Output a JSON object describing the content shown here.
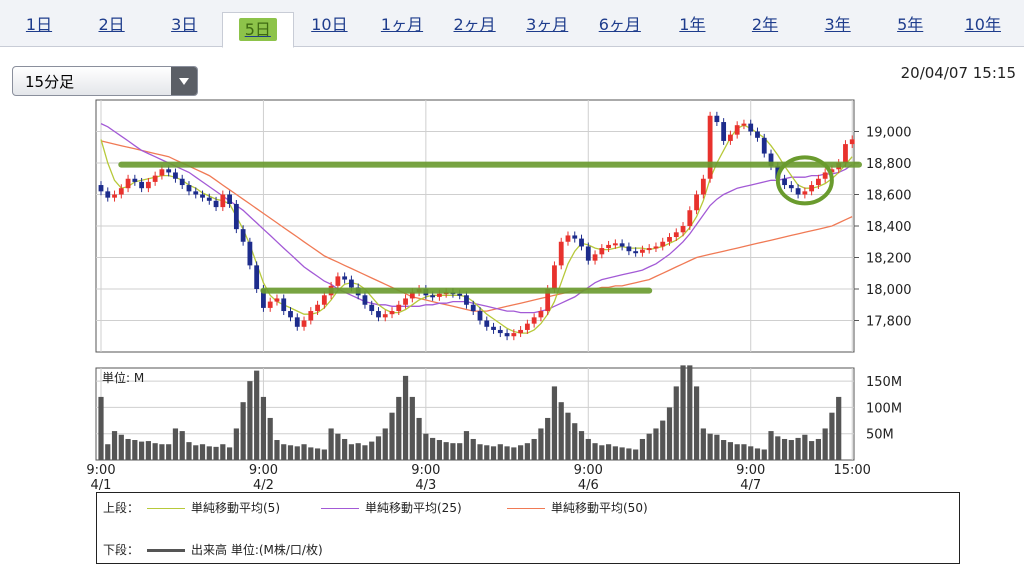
{
  "tabs": [
    {
      "label": "1日",
      "active": false
    },
    {
      "label": "2日",
      "active": false
    },
    {
      "label": "3日",
      "active": false
    },
    {
      "label": "5日",
      "active": true
    },
    {
      "label": "10日",
      "active": false
    },
    {
      "label": "1ヶ月",
      "active": false
    },
    {
      "label": "2ヶ月",
      "active": false
    },
    {
      "label": "3ヶ月",
      "active": false
    },
    {
      "label": "6ヶ月",
      "active": false
    },
    {
      "label": "1年",
      "active": false
    },
    {
      "label": "2年",
      "active": false
    },
    {
      "label": "3年",
      "active": false
    },
    {
      "label": "5年",
      "active": false
    },
    {
      "label": "10年",
      "active": false
    }
  ],
  "interval_select": {
    "value": "15分足"
  },
  "timestamp": "20/04/07 15:15",
  "legend": {
    "upper_label": "上段：",
    "lower_label": "下段：",
    "sma5": "単純移動平均(5)",
    "sma25": "単純移動平均(25)",
    "sma50": "単純移動平均(50)",
    "volume": "出来高 単位:(M株/口/枚)"
  },
  "colors": {
    "up": "#e8322d",
    "down": "#1d2c8c",
    "sma5": "#b7c93a",
    "sma25": "#a35ad6",
    "sma50": "#f07a55",
    "annotation": "#6a9b2e",
    "volume": "#555555"
  },
  "chart_data": [
    {
      "type": "candlestick",
      "ylim": [
        17600,
        19200
      ],
      "y_ticks": [
        "19,000",
        "18,800",
        "18,600",
        "18,400",
        "18,200",
        "18,000",
        "17,800"
      ],
      "x_ticks": [
        {
          "time": "9:00",
          "date": "4/1"
        },
        {
          "time": "9:00",
          "date": "4/2"
        },
        {
          "time": "9:00",
          "date": "4/3"
        },
        {
          "time": "9:00",
          "date": "4/6"
        },
        {
          "time": "9:00",
          "date": "4/7"
        },
        {
          "time": "15:00",
          "date": ""
        }
      ],
      "close": [
        18620,
        18580,
        18600,
        18640,
        18700,
        18680,
        18640,
        18680,
        18720,
        18760,
        18740,
        18700,
        18660,
        18620,
        18600,
        18580,
        18560,
        18520,
        18600,
        18540,
        18380,
        18300,
        18150,
        18000,
        17880,
        17920,
        17940,
        17860,
        17820,
        17760,
        17800,
        17860,
        17900,
        17960,
        18020,
        18080,
        18060,
        18010,
        17960,
        17900,
        17860,
        17820,
        17840,
        17860,
        17900,
        17940,
        17980,
        18000,
        17960,
        17950,
        17970,
        17980,
        17970,
        17960,
        17900,
        17860,
        17800,
        17760,
        17740,
        17720,
        17700,
        17720,
        17740,
        17780,
        17820,
        17860,
        18000,
        18150,
        18300,
        18340,
        18320,
        18270,
        18180,
        18220,
        18260,
        18280,
        18290,
        18270,
        18240,
        18230,
        18250,
        18260,
        18270,
        18300,
        18330,
        18360,
        18400,
        18500,
        18600,
        18700,
        19100,
        19060,
        18940,
        18980,
        19040,
        19050,
        19000,
        18960,
        18860,
        18780,
        18700,
        18660,
        18640,
        18600,
        18620,
        18660,
        18700,
        18740,
        18760,
        18800,
        18920,
        18950
      ],
      "sma5": [
        18950,
        18800,
        18690,
        18640,
        18650,
        18680,
        18690,
        18700,
        18710,
        18720,
        18720,
        18710,
        18690,
        18660,
        18640,
        18610,
        18590,
        18570,
        18560,
        18540,
        18460,
        18380,
        18280,
        18160,
        18040,
        17960,
        17920,
        17900,
        17880,
        17860,
        17840,
        17840,
        17850,
        17880,
        17930,
        17990,
        18030,
        18040,
        18030,
        18000,
        17950,
        17900,
        17870,
        17850,
        17850,
        17870,
        17900,
        17930,
        17950,
        17960,
        17960,
        17960,
        17960,
        17960,
        17950,
        17920,
        17880,
        17840,
        17810,
        17780,
        17750,
        17730,
        17720,
        17720,
        17740,
        17780,
        17840,
        17920,
        18040,
        18160,
        18240,
        18290,
        18280,
        18260,
        18250,
        18250,
        18260,
        18270,
        18260,
        18260,
        18260,
        18250,
        18260,
        18270,
        18290,
        18310,
        18340,
        18390,
        18460,
        18560,
        18700,
        18800,
        18880,
        18960,
        19020,
        19040,
        19020,
        18990,
        18960,
        18910,
        18850,
        18780,
        18720,
        18660,
        18640,
        18640,
        18650,
        18670,
        18700,
        18740,
        18790,
        18840
      ],
      "sma25": [
        19050,
        19030,
        19000,
        18970,
        18940,
        18910,
        18880,
        18860,
        18840,
        18820,
        18800,
        18780,
        18760,
        18740,
        18710,
        18680,
        18650,
        18620,
        18590,
        18560,
        18530,
        18500,
        18460,
        18420,
        18380,
        18340,
        18300,
        18260,
        18220,
        18180,
        18140,
        18110,
        18080,
        18050,
        18030,
        18000,
        17980,
        17960,
        17940,
        17920,
        17910,
        17900,
        17900,
        17890,
        17890,
        17890,
        17890,
        17890,
        17900,
        17900,
        17910,
        17910,
        17920,
        17920,
        17920,
        17910,
        17900,
        17890,
        17880,
        17870,
        17860,
        17860,
        17850,
        17850,
        17850,
        17860,
        17870,
        17890,
        17910,
        17930,
        17950,
        17980,
        18010,
        18040,
        18060,
        18070,
        18080,
        18090,
        18100,
        18110,
        18120,
        18140,
        18160,
        18190,
        18220,
        18260,
        18300,
        18350,
        18410,
        18470,
        18530,
        18570,
        18600,
        18620,
        18640,
        18650,
        18660,
        18670,
        18680,
        18690,
        18690,
        18700,
        18710,
        18710,
        18710,
        18720,
        18720,
        18730,
        18730,
        18740,
        18760,
        18790
      ],
      "sma50": [
        18940,
        18930,
        18920,
        18910,
        18900,
        18890,
        18880,
        18870,
        18860,
        18850,
        18840,
        18820,
        18800,
        18780,
        18760,
        18740,
        18720,
        18690,
        18660,
        18630,
        18600,
        18570,
        18540,
        18510,
        18480,
        18450,
        18420,
        18390,
        18360,
        18330,
        18300,
        18270,
        18240,
        18210,
        18190,
        18170,
        18150,
        18130,
        18110,
        18090,
        18070,
        18050,
        18030,
        18010,
        17990,
        17970,
        17950,
        17940,
        17930,
        17920,
        17910,
        17900,
        17890,
        17880,
        17870,
        17860,
        17860,
        17860,
        17870,
        17880,
        17890,
        17900,
        17910,
        17920,
        17930,
        17940,
        17950,
        17960,
        17970,
        17980,
        17990,
        17990,
        18000,
        18000,
        18010,
        18010,
        18020,
        18020,
        18030,
        18040,
        18050,
        18060,
        18080,
        18100,
        18120,
        18140,
        18160,
        18180,
        18200,
        18210,
        18220,
        18230,
        18240,
        18250,
        18260,
        18270,
        18280,
        18290,
        18300,
        18310,
        18320,
        18330,
        18340,
        18350,
        18360,
        18370,
        18380,
        18390,
        18400,
        18420,
        18440,
        18460
      ],
      "annotations": [
        {
          "type": "hline",
          "y": 18790,
          "x_from": 3,
          "x_to": 112
        },
        {
          "type": "hline",
          "y": 17990,
          "x_from": 24,
          "x_to": 81
        },
        {
          "type": "circle",
          "x": 104,
          "y": 18690
        }
      ]
    },
    {
      "type": "bar",
      "y_unit": "単位: M",
      "y_ticks": [
        "150M",
        "100M",
        "50M"
      ],
      "ylim": [
        0,
        175
      ],
      "values": [
        120,
        30,
        55,
        48,
        40,
        38,
        35,
        36,
        32,
        30,
        30,
        60,
        55,
        34,
        28,
        30,
        26,
        25,
        30,
        24,
        60,
        110,
        150,
        170,
        120,
        80,
        38,
        30,
        28,
        26,
        30,
        24,
        22,
        20,
        60,
        50,
        40,
        30,
        32,
        28,
        35,
        45,
        60,
        90,
        120,
        160,
        120,
        80,
        50,
        42,
        38,
        34,
        32,
        32,
        55,
        40,
        30,
        28,
        26,
        30,
        26,
        24,
        28,
        32,
        40,
        60,
        80,
        140,
        110,
        90,
        70,
        55,
        40,
        32,
        28,
        30,
        26,
        24,
        22,
        20,
        40,
        50,
        60,
        75,
        100,
        140,
        180,
        180,
        140,
        60,
        50,
        48,
        38,
        34,
        30,
        30,
        26,
        22,
        20,
        55,
        45,
        40,
        38,
        42,
        48,
        36,
        40,
        60,
        90,
        120
      ]
    }
  ]
}
